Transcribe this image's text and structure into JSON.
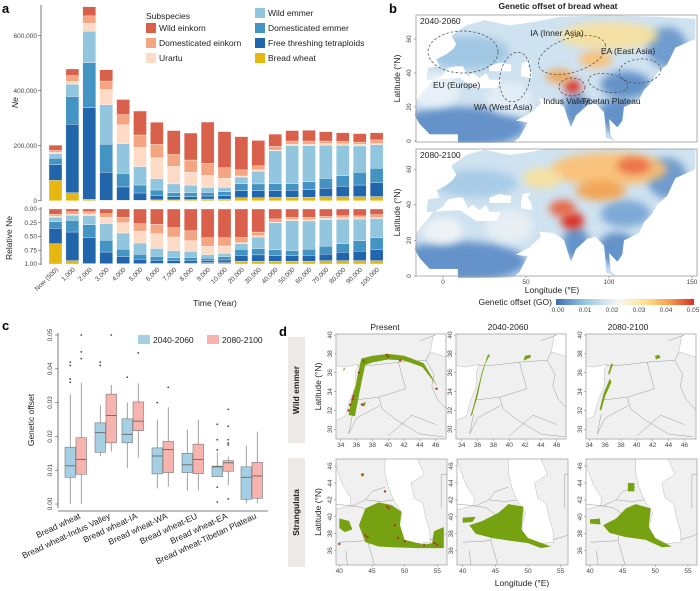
{
  "panel_labels": {
    "a": "a",
    "b": "b",
    "c": "c",
    "d": "d"
  },
  "chart_data": [
    {
      "type": "bar",
      "stacked": true,
      "xlabel": "Time (Year)",
      "ylabel": "Ne",
      "ylim": [
        0,
        700000
      ],
      "yticks": [
        "0",
        "200,000",
        "400,000",
        "600,000"
      ],
      "ytick_values": [
        0,
        200000,
        400000,
        600000
      ],
      "legend_title": "Subspecies",
      "legend_position": "top-right",
      "categories": [
        "Now (500)",
        "1,000",
        "2,000",
        "3,000",
        "4,000",
        "5,000",
        "6,000",
        "7,000",
        "8,000",
        "9,000",
        "10,000",
        "20,000",
        "30,000",
        "40,000",
        "50,000",
        "60,000",
        "70,000",
        "80,000",
        "90,000",
        "100,000"
      ],
      "series": [
        {
          "name": "Wild einkorn",
          "color": "#d9604b",
          "values": [
            19000,
            24000,
            33000,
            41000,
            55000,
            87000,
            80000,
            87000,
            98000,
            150000,
            131000,
            121000,
            92000,
            44000,
            38000,
            39000,
            34000,
            31000,
            31000,
            26000
          ]
        },
        {
          "name": "Domesticated einkorn",
          "color": "#f4a582",
          "values": [
            7000,
            21000,
            27000,
            31000,
            37000,
            45000,
            49000,
            43000,
            44000,
            44000,
            38000,
            22000,
            15000,
            14000,
            11000,
            11000,
            9000,
            9000,
            8000,
            13000
          ]
        },
        {
          "name": "Urartu",
          "color": "#fddbc7",
          "values": [
            5000,
            10000,
            29000,
            55000,
            69000,
            70000,
            76000,
            64000,
            48000,
            44000,
            34000,
            4000,
            5000,
            2000,
            6000,
            6000,
            6000,
            6000,
            6000,
            4000
          ]
        },
        {
          "name": "Wild emmer",
          "color": "#92c5de",
          "values": [
            16000,
            45000,
            114000,
            144000,
            108000,
            67000,
            41000,
            32000,
            27000,
            18000,
            15000,
            24000,
            46000,
            120000,
            138000,
            131000,
            121000,
            110000,
            96000,
            86000
          ]
        },
        {
          "name": "Domesticated emmer",
          "color": "#4393c3",
          "values": [
            24000,
            101000,
            164000,
            102000,
            49000,
            29000,
            20000,
            14000,
            14000,
            13000,
            15000,
            26000,
            25000,
            26000,
            24000,
            29000,
            36000,
            38000,
            46000,
            53000
          ]
        },
        {
          "name": "Free threshing tetraploids",
          "color": "#2166ac",
          "values": [
            57000,
            249000,
            333000,
            101000,
            48000,
            26000,
            16000,
            12000,
            11000,
            11000,
            12000,
            25000,
            25000,
            24000,
            25000,
            27000,
            30000,
            38000,
            42000,
            50000
          ]
        },
        {
          "name": "Bread wheat",
          "color": "#e6b710",
          "values": [
            74000,
            29000,
            5000,
            2000,
            2000,
            2000,
            3000,
            3000,
            4000,
            6000,
            6000,
            11000,
            11000,
            12000,
            13000,
            13000,
            15000,
            15000,
            15000,
            15000
          ]
        }
      ],
      "relative_panel": {
        "ylabel": "Relative Ne",
        "ylim": [
          0,
          1
        ],
        "yticks": [
          "0.00",
          "0.25",
          "0.50",
          "0.75",
          "1.00"
        ],
        "ytick_values": [
          0,
          0.25,
          0.5,
          0.75,
          1
        ]
      }
    },
    {
      "type": "box",
      "ylabel": "Genetic offset",
      "ylim": [
        0,
        0.05
      ],
      "yticks": [
        "0.00",
        "0.01",
        "0.02",
        "0.03",
        "0.04",
        "0.05"
      ],
      "ytick_values": [
        0,
        0.01,
        0.02,
        0.03,
        0.04,
        0.05
      ],
      "legend_position": "top-right",
      "categories": [
        "Bread wheat",
        "Bread wheat-Indus Valley",
        "Bread wheat-IA",
        "Bread wheat-WA",
        "Bread wheat-EU",
        "Bread wheat-EA",
        "Bread wheat-Tibetan Plateau"
      ],
      "series": [
        {
          "name": "2040-2060",
          "color": "#a6cfe3",
          "boxes": [
            {
              "min": 0.0,
              "q1": 0.0079,
              "median": 0.0113,
              "q3": 0.0168,
              "max": 0.0325,
              "outliers": [
                0.036,
                0.037,
                0.041,
                0.042
              ]
            },
            {
              "min": 0.0142,
              "q1": 0.0153,
              "median": 0.0211,
              "q3": 0.024,
              "max": 0.0292,
              "outliers": [
                0.041,
                0.042
              ]
            },
            {
              "min": 0.0106,
              "q1": 0.0181,
              "median": 0.0206,
              "q3": 0.0252,
              "max": 0.03,
              "outliers": [
                0.0375
              ]
            },
            {
              "min": 0.0046,
              "q1": 0.0089,
              "median": 0.0142,
              "q3": 0.0166,
              "max": 0.025,
              "outliers": [
                0.03
              ]
            },
            {
              "min": 0.004,
              "q1": 0.0093,
              "median": 0.0116,
              "q3": 0.015,
              "max": 0.022,
              "outliers": []
            },
            {
              "min": 0.0081,
              "q1": 0.0081,
              "median": 0.011,
              "q3": 0.0112,
              "max": 0.0152,
              "outliers": [
                0.0006,
                0.005,
                0.016,
                0.019,
                0.0236
              ]
            },
            {
              "min": 0.0002,
              "q1": 0.0014,
              "median": 0.0079,
              "q3": 0.011,
              "max": 0.0172,
              "outliers": []
            }
          ]
        },
        {
          "name": "2080-2100",
          "color": "#f7b4ae",
          "boxes": [
            {
              "min": 0.0,
              "q1": 0.0088,
              "median": 0.0132,
              "q3": 0.0196,
              "max": 0.0359,
              "outliers": [
                0.043,
                0.045,
                0.05
              ]
            },
            {
              "min": 0.0155,
              "q1": 0.0181,
              "median": 0.0262,
              "q3": 0.0325,
              "max": 0.0352,
              "outliers": [
                0.05
              ]
            },
            {
              "min": 0.0137,
              "q1": 0.0217,
              "median": 0.0245,
              "q3": 0.0302,
              "max": 0.0357,
              "outliers": [
                0.0447
              ]
            },
            {
              "min": 0.0051,
              "q1": 0.0093,
              "median": 0.0161,
              "q3": 0.0185,
              "max": 0.0286,
              "outliers": [
                0.0345
              ]
            },
            {
              "min": 0.004,
              "q1": 0.009,
              "median": 0.0132,
              "q3": 0.0177,
              "max": 0.025,
              "outliers": []
            },
            {
              "min": 0.0056,
              "q1": 0.0097,
              "median": 0.0122,
              "q3": 0.0128,
              "max": 0.014,
              "outliers": [
                0.0015,
                0.0175,
                0.018,
                0.019,
                0.023,
                0.028
              ]
            },
            {
              "min": 0.0002,
              "q1": 0.0017,
              "median": 0.0083,
              "q3": 0.0123,
              "max": 0.0214,
              "outliers": []
            }
          ]
        }
      ]
    }
  ],
  "map_b": {
    "title": "Genetic offset of bread wheat",
    "panels": [
      "2040-2060",
      "2080-2100"
    ],
    "regions": [
      "EU (Europe)",
      "IA (Inner Asia)",
      "EA (East Asia)",
      "WA (West Asia)",
      "Indus Valley",
      "Tibetan Plateau"
    ],
    "xlabel": "Longitude (°E)",
    "ylabel": "Latitude (°N)",
    "xticks": [
      "0",
      "50",
      "100",
      "150"
    ],
    "yticks": [
      "0",
      "20",
      "40",
      "60"
    ],
    "colorbar": {
      "label": "Genetic offset (GO)",
      "ticks": [
        "0.00",
        "0.01",
        "0.02",
        "0.03",
        "0.04",
        "0.05"
      ],
      "colors": [
        "#3a6fb5",
        "#92c5de",
        "#f7f7f7",
        "#fee090",
        "#f4a04a",
        "#d73027"
      ]
    }
  },
  "map_d": {
    "columns": [
      "Present",
      "2040-2060",
      "2080-2100"
    ],
    "rows": [
      "Wild emmer",
      "Strangulata"
    ],
    "xlabel": "Longitude (°E)",
    "ylabel": "Latitude (°N)",
    "row1_xticks": [
      "34",
      "36",
      "38",
      "40",
      "42",
      "44",
      "46"
    ],
    "row1_yticks": [
      "30",
      "32",
      "34",
      "36",
      "38",
      "40"
    ],
    "row2_xticks": [
      "40",
      "45",
      "50",
      "55"
    ],
    "row2_yticks": [
      "36",
      "38",
      "40",
      "42",
      "44",
      "46"
    ],
    "colors": {
      "habitat": "#76a212",
      "sample": "#b2332a",
      "background": "#f0f0f0"
    }
  }
}
